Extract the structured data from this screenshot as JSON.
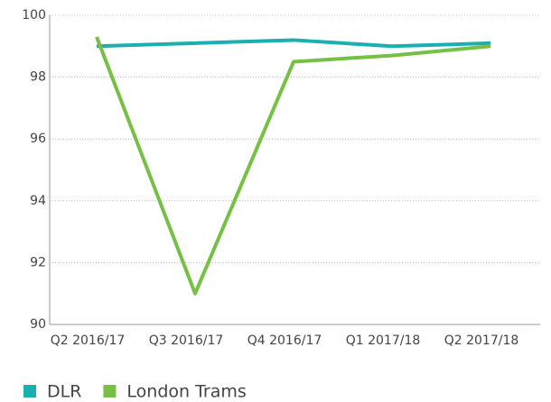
{
  "chart_data": {
    "type": "line",
    "categories": [
      "Q2 2016/17",
      "Q3 2016/17",
      "Q4 2016/17",
      "Q1 2017/18",
      "Q2 2017/18"
    ],
    "series": [
      {
        "name": "DLR",
        "color": "#1aafb0",
        "values": [
          99.0,
          99.1,
          99.2,
          99.0,
          99.1
        ]
      },
      {
        "name": "London Trams",
        "color": "#76c043",
        "values": [
          99.3,
          91.0,
          98.5,
          98.7,
          99.0
        ]
      }
    ],
    "ylim": [
      90,
      100
    ],
    "yticks": [
      90,
      92,
      94,
      96,
      98,
      100
    ],
    "grid": true,
    "legend": "bottom"
  }
}
